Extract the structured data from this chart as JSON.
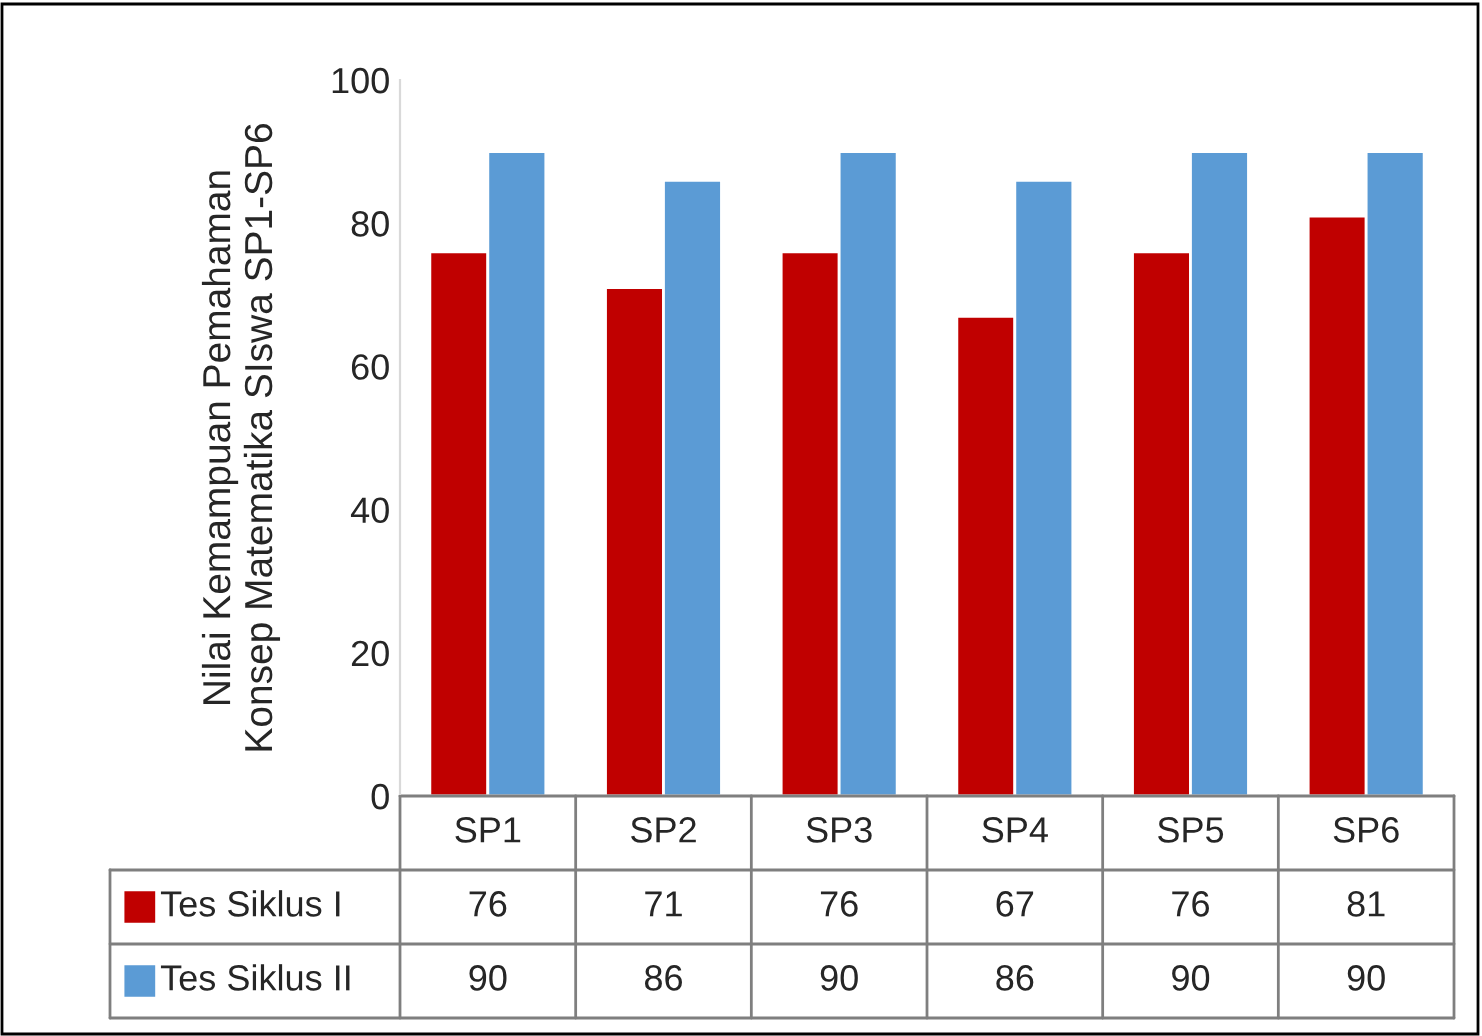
{
  "chart_data": {
    "type": "bar",
    "ylabel": "Nilai Kemampuan Pemahaman\nKonsep Matematika SIswa SP1-SP6",
    "categories": [
      "SP1",
      "SP2",
      "SP3",
      "SP4",
      "SP5",
      "SP6"
    ],
    "series": [
      {
        "name": "Tes Siklus I",
        "color": "#c00000",
        "values": [
          76,
          71,
          76,
          67,
          76,
          81
        ]
      },
      {
        "name": "Tes Siklus II",
        "color": "#5b9bd5",
        "values": [
          90,
          86,
          90,
          86,
          90,
          90
        ]
      }
    ],
    "ylim": [
      0,
      100
    ],
    "yticks": [
      0,
      20,
      40,
      60,
      80,
      100
    ],
    "grid": false,
    "data_labels": true,
    "legend": "bottom"
  }
}
